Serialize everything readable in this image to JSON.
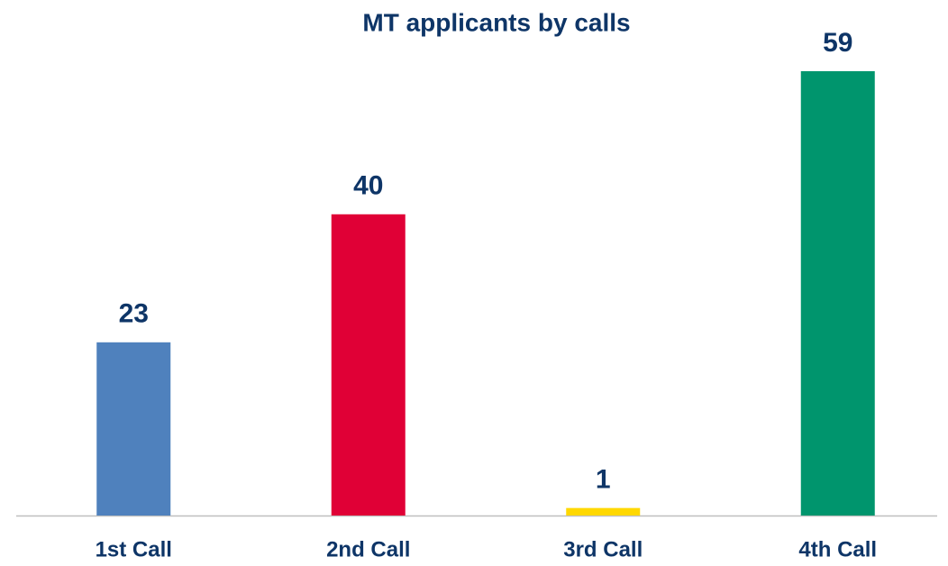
{
  "chart_data": {
    "type": "bar",
    "title": "MT applicants by calls",
    "categories": [
      "1st Call",
      "2nd Call",
      "3rd Call",
      "4th Call"
    ],
    "values": [
      23,
      40,
      1,
      59
    ],
    "colors": [
      "#4f81bd",
      "#e00036",
      "#ffd800",
      "#00956d"
    ]
  }
}
